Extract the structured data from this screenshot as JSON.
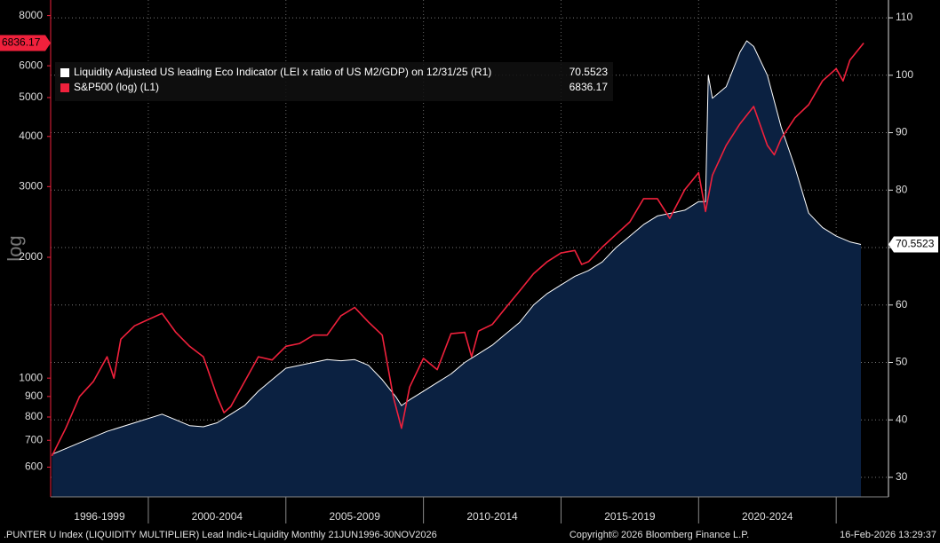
{
  "chart_data": {
    "type": "line",
    "y_label": "log",
    "legend": "top-left",
    "log_y": true,
    "grid": true,
    "xlim": [
      1996.45,
      2026.9
    ],
    "xticks": [
      2000,
      2005,
      2010,
      2015,
      2020,
      2025
    ],
    "x_periods": [
      "1996-1999",
      "2000-2004",
      "2005-2009",
      "2010-2014",
      "2015-2019",
      "2020-2024"
    ],
    "ylim": [
      506,
      8750
    ],
    "yticks": [
      600,
      700,
      800,
      900,
      1000,
      2000,
      3000,
      4000,
      5000,
      6000,
      8000
    ],
    "y2lim": [
      26.6,
      113.1
    ],
    "y2ticks": [
      30,
      40,
      50,
      60,
      70,
      80,
      90,
      100,
      110
    ],
    "series": [
      {
        "name": "Liquidity Adjusted US leading Eco Indicator (LEI x ratio of US M2/GDP) on 12/31/25 (R1)",
        "axis": "y2",
        "style": "area",
        "color": "#ffffff",
        "fill": "#0b2141",
        "x": [
          1996.5,
          1997.5,
          1998.5,
          1999.5,
          2000.5,
          2001.0,
          2001.5,
          2002.0,
          2002.5,
          2003.0,
          2003.5,
          2004.0,
          2004.5,
          2005.0,
          2005.5,
          2006.0,
          2006.5,
          2007.0,
          2007.5,
          2008.0,
          2008.5,
          2009.0,
          2009.2,
          2009.5,
          2010.0,
          2010.5,
          2011.0,
          2011.5,
          2012.0,
          2012.5,
          2013.0,
          2013.5,
          2014.0,
          2014.5,
          2015.0,
          2015.5,
          2016.0,
          2016.5,
          2017.0,
          2017.5,
          2018.0,
          2018.5,
          2019.0,
          2019.5,
          2020.0,
          2020.25,
          2020.35,
          2020.5,
          2021.0,
          2021.5,
          2021.75,
          2022.0,
          2022.5,
          2023.0,
          2023.5,
          2024.0,
          2024.5,
          2025.0,
          2025.5,
          2025.9
        ],
        "values": [
          34,
          36,
          38,
          39.5,
          41,
          40,
          39,
          38.8,
          39.5,
          41,
          42.5,
          45,
          47,
          49,
          49.5,
          50,
          50.5,
          50.3,
          50.5,
          49.5,
          47,
          44,
          42.5,
          43.5,
          45,
          46.5,
          48,
          50,
          51.5,
          53,
          55,
          57,
          60,
          62,
          63.5,
          65,
          66,
          67.5,
          70,
          72,
          74,
          75.5,
          76,
          76.5,
          78,
          78,
          100,
          96,
          98,
          104,
          106,
          105,
          100,
          91,
          84,
          76,
          73.5,
          72,
          71,
          70.5523
        ]
      },
      {
        "name": "S&P500 (log) (L1)",
        "axis": "y",
        "style": "line",
        "color": "#f0213c",
        "x": [
          1996.5,
          1997.0,
          1997.5,
          1998.0,
          1998.5,
          1998.75,
          1999.0,
          1999.5,
          2000.0,
          2000.5,
          2001.0,
          2001.5,
          2002.0,
          2002.5,
          2002.75,
          2003.0,
          2003.5,
          2004.0,
          2004.5,
          2005.0,
          2005.5,
          2006.0,
          2006.5,
          2007.0,
          2007.5,
          2008.0,
          2008.5,
          2008.9,
          2009.2,
          2009.5,
          2010.0,
          2010.5,
          2011.0,
          2011.5,
          2011.75,
          2012.0,
          2012.5,
          2013.0,
          2013.5,
          2014.0,
          2014.5,
          2015.0,
          2015.5,
          2015.75,
          2016.0,
          2016.5,
          2017.0,
          2017.5,
          2018.0,
          2018.5,
          2018.95,
          2019.5,
          2020.0,
          2020.25,
          2020.5,
          2021.0,
          2021.5,
          2022.0,
          2022.5,
          2022.75,
          2023.0,
          2023.5,
          2024.0,
          2024.5,
          2025.0,
          2025.25,
          2025.5,
          2026.0
        ],
        "values": [
          640,
          750,
          900,
          980,
          1130,
          1000,
          1250,
          1350,
          1400,
          1450,
          1300,
          1200,
          1130,
          900,
          820,
          850,
          980,
          1130,
          1110,
          1200,
          1220,
          1280,
          1280,
          1430,
          1500,
          1380,
          1280,
          900,
          750,
          950,
          1120,
          1050,
          1290,
          1300,
          1130,
          1310,
          1360,
          1500,
          1650,
          1820,
          1950,
          2050,
          2080,
          1920,
          1950,
          2120,
          2280,
          2450,
          2800,
          2800,
          2500,
          2950,
          3250,
          2600,
          3200,
          3800,
          4300,
          4750,
          3800,
          3600,
          3950,
          4450,
          4800,
          5500,
          5900,
          5500,
          6200,
          6836.17
        ]
      }
    ],
    "footer": {
      "left": ".PUNTER U Index (LIQUIDITY MULTIPLIER) Lead Indic+Liquidity Monthly 21JUN1996-30NOV2026",
      "center": "Copyright© 2026 Bloomberg Finance L.P.",
      "right": "16-Feb-2026 13:29:37"
    }
  }
}
